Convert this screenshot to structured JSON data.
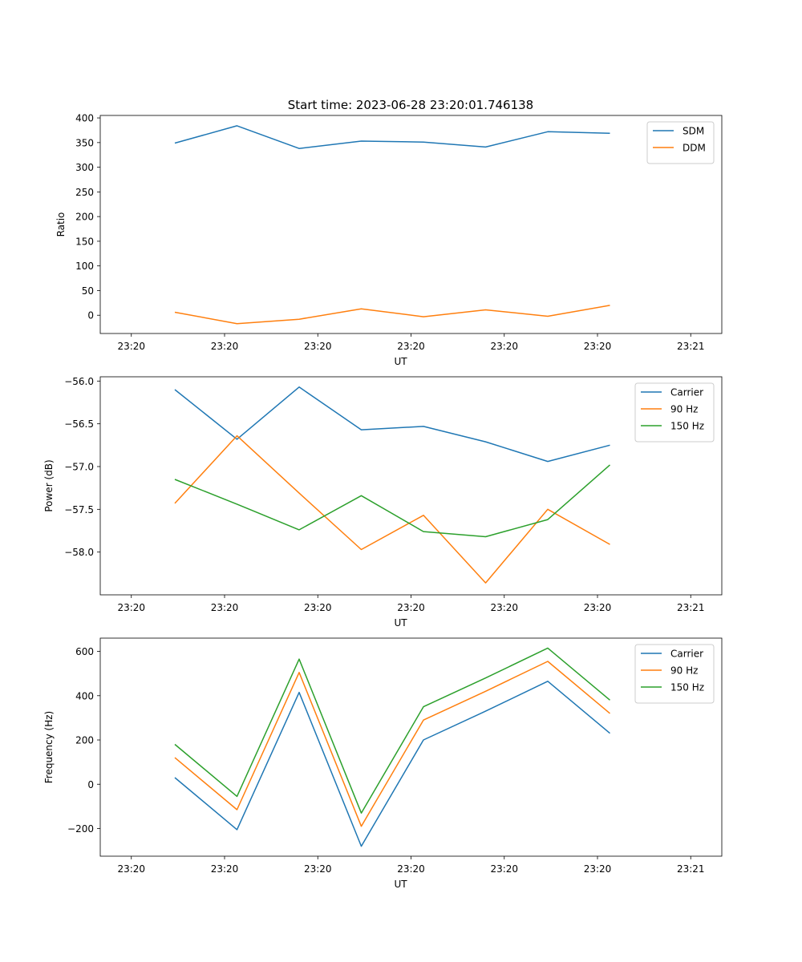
{
  "figure": {
    "title": "Start time: 2023-06-28 23:20:01.746138"
  },
  "chart_data": [
    {
      "type": "line",
      "title": "Start time: 2023-06-28 23:20:01.746138",
      "xlabel": "UT",
      "ylabel": "Ratio",
      "x_ticks": [
        "23:20",
        "23:20",
        "23:20",
        "23:20",
        "23:20",
        "23:20",
        "23:21"
      ],
      "y_ticks": [
        0,
        50,
        100,
        150,
        200,
        250,
        300,
        350,
        400
      ],
      "xlim": [
        -0.5,
        9.5
      ],
      "ylim": [
        -37,
        405
      ],
      "x": [
        0.7,
        1.7,
        2.7,
        3.7,
        4.7,
        5.7,
        6.7,
        7.7
      ],
      "series": [
        {
          "name": "SDM",
          "color": "#1f77b4",
          "values": [
            349,
            384,
            338,
            353,
            351,
            341,
            372,
            369
          ]
        },
        {
          "name": "DDM",
          "color": "#ff7f0e",
          "values": [
            6,
            -17,
            -8,
            13,
            -3,
            11,
            -2,
            20
          ]
        }
      ],
      "legend": "top-right",
      "grid": false
    },
    {
      "type": "line",
      "title": "",
      "xlabel": "UT",
      "ylabel": "Power (dB)",
      "x_ticks": [
        "23:20",
        "23:20",
        "23:20",
        "23:20",
        "23:20",
        "23:20",
        "23:21"
      ],
      "y_ticks": [
        "−56.0",
        "−56.5",
        "−57.0",
        "−57.5",
        "−58.0"
      ],
      "y_tick_values": [
        -56.0,
        -56.5,
        -57.0,
        -57.5,
        -58.0
      ],
      "xlim": [
        -0.5,
        9.5
      ],
      "ylim": [
        -58.5,
        -55.95
      ],
      "x": [
        0.7,
        1.7,
        2.7,
        3.7,
        4.7,
        5.7,
        6.7,
        7.7
      ],
      "series": [
        {
          "name": "Carrier",
          "color": "#1f77b4",
          "values": [
            -56.1,
            -56.68,
            -56.07,
            -56.57,
            -56.53,
            -56.71,
            -56.94,
            -56.75
          ]
        },
        {
          "name": "90 Hz",
          "color": "#ff7f0e",
          "values": [
            -57.43,
            -56.64,
            -57.31,
            -57.97,
            -57.57,
            -58.36,
            -57.5,
            -57.91
          ]
        },
        {
          "name": "150 Hz",
          "color": "#2ca02c",
          "values": [
            -57.15,
            -57.44,
            -57.74,
            -57.34,
            -57.76,
            -57.82,
            -57.62,
            -56.98
          ]
        }
      ],
      "legend": "top-right",
      "grid": false
    },
    {
      "type": "line",
      "title": "",
      "xlabel": "UT",
      "ylabel": "Frequency (Hz)",
      "x_ticks": [
        "23:20",
        "23:20",
        "23:20",
        "23:20",
        "23:20",
        "23:20",
        "23:21"
      ],
      "y_ticks": [
        "−200",
        "0",
        "200",
        "400",
        "600"
      ],
      "y_tick_values": [
        -200,
        0,
        200,
        400,
        600
      ],
      "xlim": [
        -0.5,
        9.5
      ],
      "ylim": [
        -325,
        660
      ],
      "x": [
        0.7,
        1.7,
        2.7,
        3.7,
        4.7,
        5.7,
        6.7,
        7.7
      ],
      "series": [
        {
          "name": "Carrier",
          "color": "#1f77b4",
          "values": [
            30,
            -205,
            415,
            -280,
            200,
            330,
            465,
            230
          ]
        },
        {
          "name": "90 Hz",
          "color": "#ff7f0e",
          "values": [
            120,
            -115,
            505,
            -190,
            290,
            420,
            555,
            320
          ]
        },
        {
          "name": "150 Hz",
          "color": "#2ca02c",
          "values": [
            180,
            -55,
            565,
            -130,
            350,
            480,
            615,
            380
          ]
        }
      ],
      "legend": "top-right",
      "grid": false
    }
  ]
}
